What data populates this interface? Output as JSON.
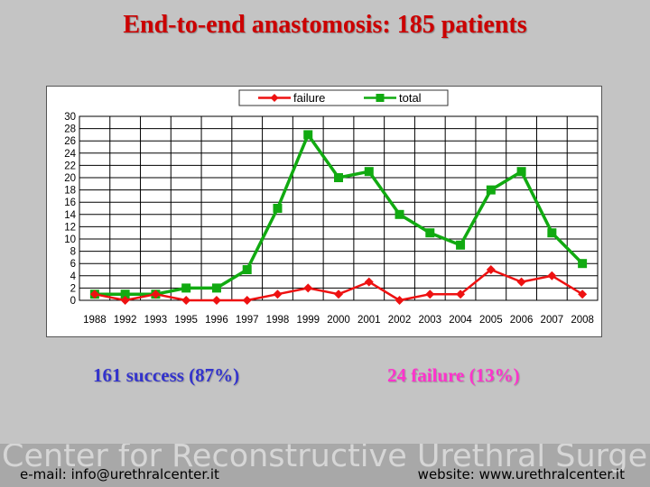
{
  "slide": {
    "title": "End-to-end anastomosis: 185 patients",
    "success_text": "161 success (87%)",
    "failure_text": "24 failure (13%)"
  },
  "footer": {
    "watermark": "Center for Reconstructive Urethral Surgery",
    "email": "e-mail: info@urethralcenter.it",
    "website": "website: www.urethralcenter.it"
  },
  "colors": {
    "failure": "#ee1111",
    "total": "#11aa11"
  },
  "chart_data": {
    "type": "line",
    "categories": [
      "1988",
      "1992",
      "1993",
      "1995",
      "1996",
      "1997",
      "1998",
      "1999",
      "2000",
      "2001",
      "2002",
      "2003",
      "2004",
      "2005",
      "2006",
      "2007",
      "2008"
    ],
    "series": [
      {
        "name": "failure",
        "values": [
          1,
          0,
          1,
          0,
          0,
          0,
          1,
          2,
          1,
          3,
          0,
          1,
          1,
          5,
          3,
          4,
          1
        ]
      },
      {
        "name": "total",
        "values": [
          1,
          1,
          1,
          2,
          2,
          5,
          15,
          27,
          20,
          21,
          14,
          11,
          9,
          18,
          21,
          11,
          6
        ]
      }
    ],
    "yticks": [
      0,
      2,
      4,
      6,
      8,
      10,
      12,
      14,
      16,
      18,
      20,
      22,
      24,
      26,
      28,
      30
    ],
    "ylim": [
      0,
      30
    ],
    "grid": true,
    "legend_position": "top"
  }
}
